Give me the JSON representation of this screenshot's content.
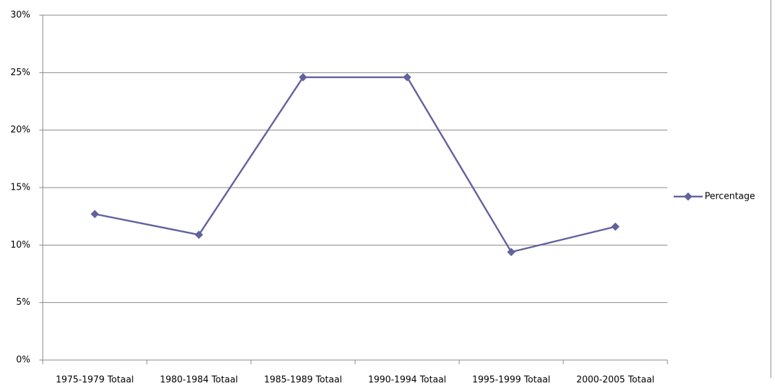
{
  "chart_data": {
    "type": "line",
    "categories": [
      "1975-1979 Totaal",
      "1980-1984 Totaal",
      "1985-1989 Totaal",
      "1990-1994 Totaal",
      "1995-1999 Totaal",
      "2000-2005 Totaal"
    ],
    "series": [
      {
        "name": "Percentage",
        "color": "#62629e",
        "values": [
          12.7,
          10.9,
          24.6,
          24.6,
          9.4,
          11.6
        ]
      }
    ],
    "ylim": [
      0,
      30
    ],
    "yticks": [
      {
        "value": 0,
        "label": "0%"
      },
      {
        "value": 5,
        "label": "5%"
      },
      {
        "value": 10,
        "label": "10%"
      },
      {
        "value": 15,
        "label": "15%"
      },
      {
        "value": 20,
        "label": "20%"
      },
      {
        "value": 25,
        "label": "25%"
      },
      {
        "value": 30,
        "label": "30%"
      }
    ],
    "grid": true,
    "legend": "right"
  }
}
